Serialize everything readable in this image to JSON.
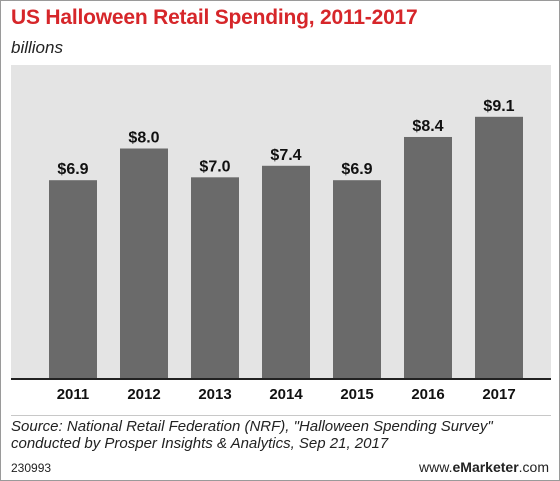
{
  "header": {
    "title": "US Halloween Retail Spending, 2011-2017",
    "subtitle": "billions"
  },
  "colors": {
    "title": "#d6262a",
    "bar": "#6a6a6a",
    "plot_background": "#e4e4e4",
    "axis": "#222222"
  },
  "chart_data": {
    "type": "bar",
    "title": "US Halloween Retail Spending, 2011-2017",
    "subtitle": "billions",
    "categories": [
      "2011",
      "2012",
      "2013",
      "2014",
      "2015",
      "2016",
      "2017"
    ],
    "values": [
      6.9,
      8.0,
      7.0,
      7.4,
      6.9,
      8.4,
      9.1
    ],
    "value_labels": [
      "$6.9",
      "$8.0",
      "$7.0",
      "$7.4",
      "$6.9",
      "$8.4",
      "$9.1"
    ],
    "xlabel": "",
    "ylabel": "",
    "ylim": [
      0,
      10
    ],
    "grid": false,
    "legend": "none"
  },
  "footer": {
    "source_line1": "Source: National Retail Federation (NRF), \"Halloween Spending Survey\"",
    "source_line2": "conducted by Prosper Insights & Analytics, Sep 21, 2017",
    "chart_id": "230993",
    "brand_prefix": "www.",
    "brand_name": "eMarketer",
    "brand_suffix": ".com"
  }
}
